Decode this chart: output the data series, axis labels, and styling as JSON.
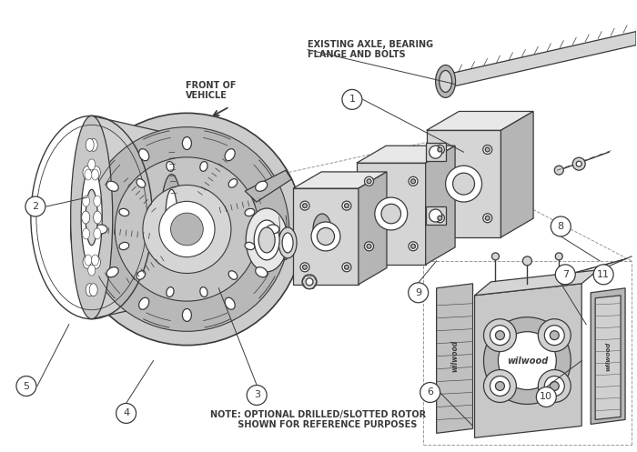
{
  "bg_color": "#ffffff",
  "line_color": "#3a3a3a",
  "lf": "#d5d5d5",
  "mf": "#b5b5b5",
  "df": "#888888",
  "note_text": "NOTE: OPTIONAL DRILLED/SLOTTED ROTOR\n      SHOWN FOR REFERENCE PURPOSES",
  "label1": "EXISTING AXLE, BEARING\nFLANGE AND BOLTS",
  "label2": "FRONT OF\nVEHICLE",
  "figsize": [
    7.0,
    4.97
  ],
  "dpi": 100
}
